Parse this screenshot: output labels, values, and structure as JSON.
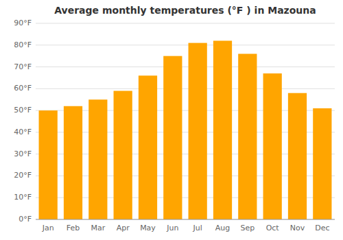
{
  "chart_data": {
    "type": "bar",
    "title": "Average monthly temperatures (°F ) in Mazouna",
    "categories": [
      "Jan",
      "Feb",
      "Mar",
      "Apr",
      "May",
      "Jun",
      "Jul",
      "Aug",
      "Sep",
      "Oct",
      "Nov",
      "Dec"
    ],
    "values": [
      50,
      52,
      55,
      59,
      66,
      75,
      81,
      82,
      76,
      67,
      58,
      51
    ],
    "color": "#FFA500",
    "ylim": [
      0,
      90
    ],
    "yticks": [
      {
        "value": 0,
        "label": "0°F"
      },
      {
        "value": 10,
        "label": "10°F"
      },
      {
        "value": 20,
        "label": "20°F"
      },
      {
        "value": 30,
        "label": "30°F"
      },
      {
        "value": 40,
        "label": "40°F"
      },
      {
        "value": 50,
        "label": "50°F"
      },
      {
        "value": 60,
        "label": "60°F"
      },
      {
        "value": 70,
        "label": "70°F"
      },
      {
        "value": 80,
        "label": "80°F"
      },
      {
        "value": 90,
        "label": "90°F"
      }
    ],
    "grid": true
  }
}
